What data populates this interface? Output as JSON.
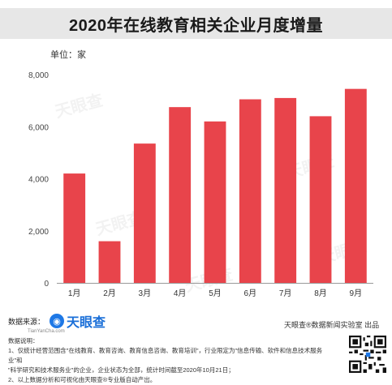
{
  "title": "2020年在线教育相关企业月度增量",
  "unit_label": "单位：家",
  "chart_data": {
    "type": "bar",
    "categories": [
      "1月",
      "2月",
      "3月",
      "4月",
      "5月",
      "6月",
      "7月",
      "8月",
      "9月"
    ],
    "values": [
      4200,
      1600,
      5350,
      6750,
      6200,
      7050,
      7100,
      6400,
      7450
    ],
    "ylim": [
      0,
      8000
    ],
    "y_ticks": [
      "0",
      "2,000",
      "4,000",
      "6,000",
      "8,000"
    ],
    "y_tick_values": [
      0,
      2000,
      4000,
      6000,
      8000
    ],
    "bar_color": "#e8444b",
    "grid": false
  },
  "footer": {
    "source_label": "数据来源：",
    "logo_text": "天眼查",
    "logo_sub": "TianYanCha.com",
    "notes_label": "数据说明：",
    "note1": "1、仅统计经营范围含\"在线教育、教育咨询、教育信息咨询、教育培训\"，行业限定为\"信息传输、软件和信息技术服务业\"和",
    "note1b": "\"科学研究和技术服务业\"的企业，企业状态为全部，统计时间截至2020年10月21日；",
    "note2": "2、以上数据分析和可视化由天眼查®专业版自动产出。",
    "credit": "天眼查®数据新闻实验室 出品"
  },
  "watermark_text": "天眼查"
}
